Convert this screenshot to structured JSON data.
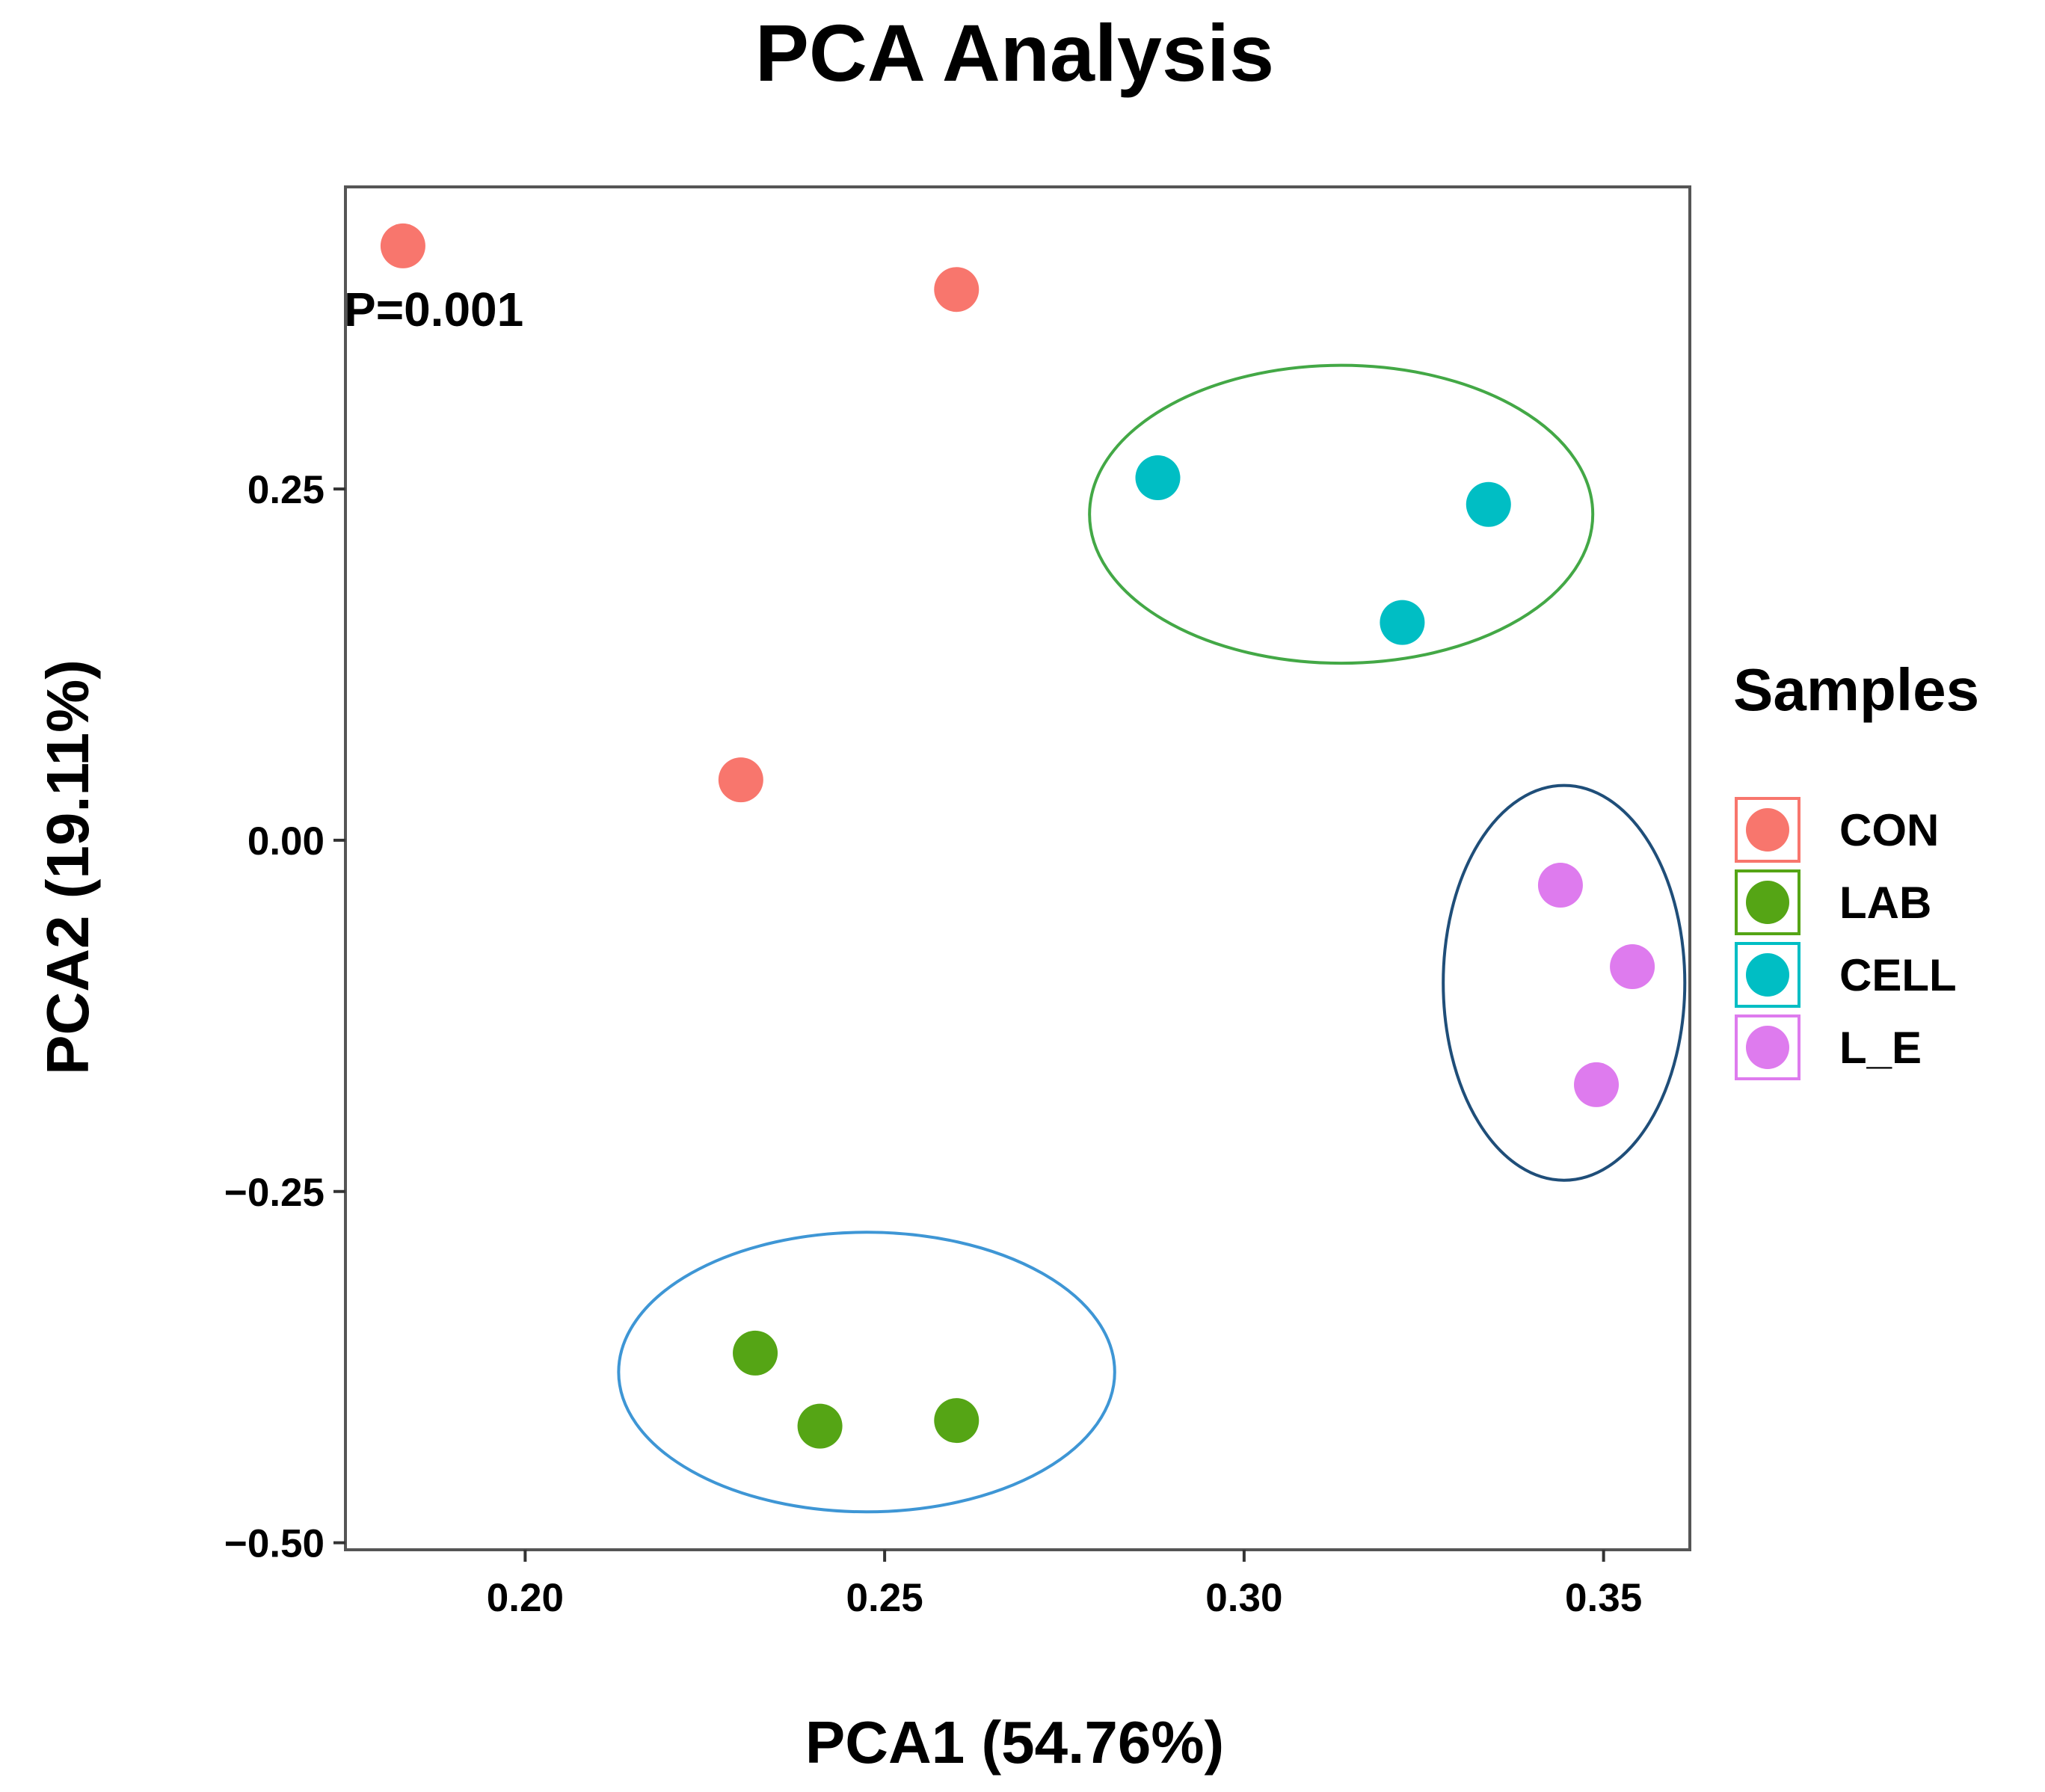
{
  "chart_data": {
    "type": "scatter",
    "title": "PCA Analysis",
    "xlabel": "PCA1 (54.76%)",
    "ylabel": "PCA2 (19.11%)",
    "xlim": [
      0.175,
      0.362
    ],
    "ylim": [
      -0.505,
      0.465
    ],
    "x_ticks": [
      0.2,
      0.25,
      0.3,
      0.35
    ],
    "x_tick_labels": [
      "0.20",
      "0.25",
      "0.30",
      "0.35"
    ],
    "y_ticks": [
      0.25,
      0.0,
      -0.25,
      -0.5
    ],
    "y_tick_labels": [
      "0.25",
      "0.00",
      "−0.25",
      "−0.50"
    ],
    "grid": false,
    "legend_title": "Samples",
    "legend_position": "right",
    "annotation": "P=0.001",
    "series": [
      {
        "name": "CON",
        "color": "#F8766D",
        "points": [
          [
            0.183,
            0.423
          ],
          [
            0.26,
            0.392
          ],
          [
            0.23,
            0.043
          ]
        ]
      },
      {
        "name": "LAB",
        "color": "#55A515",
        "points": [
          [
            0.232,
            -0.365
          ],
          [
            0.241,
            -0.417
          ],
          [
            0.26,
            -0.413
          ]
        ]
      },
      {
        "name": "CELL",
        "color": "#00BEC4",
        "points": [
          [
            0.288,
            0.258
          ],
          [
            0.334,
            0.239
          ],
          [
            0.322,
            0.155
          ]
        ]
      },
      {
        "name": "L_E",
        "color": "#DE7BEE",
        "points": [
          [
            0.344,
            -0.032
          ],
          [
            0.354,
            -0.09
          ],
          [
            0.349,
            -0.174
          ]
        ]
      }
    ],
    "ellipses": [
      {
        "group": "CELL",
        "color": "#43A846",
        "cx": 0.3135,
        "cy": 0.232,
        "rx": 0.035,
        "ry": 0.106
      },
      {
        "group": "L_E",
        "color": "#1F4E79",
        "cx": 0.3445,
        "cy": -0.1015,
        "rx": 0.0168,
        "ry": 0.1405
      },
      {
        "group": "LAB",
        "color": "#3E96D5",
        "cx": 0.2475,
        "cy": -0.3785,
        "rx": 0.0345,
        "ry": 0.0995
      }
    ]
  }
}
